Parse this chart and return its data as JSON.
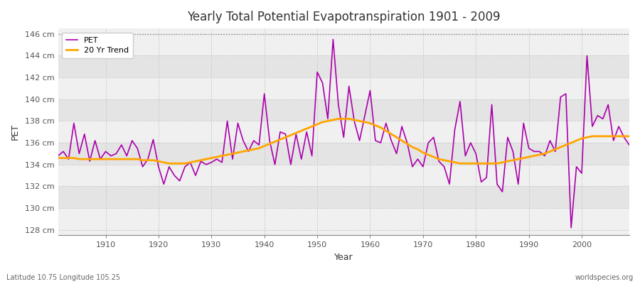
{
  "title": "Yearly Total Potential Evapotranspiration 1901 - 2009",
  "xlabel": "Year",
  "ylabel": "PET",
  "bottom_left_label": "Latitude 10.75 Longitude 105.25",
  "bottom_right_label": "worldspecies.org",
  "pet_color": "#AA00AA",
  "trend_color": "#FFA500",
  "fig_bg_color": "#FFFFFF",
  "plot_bg_color": "#F0F0F0",
  "band_color_light": "#F0F0F0",
  "band_color_dark": "#E4E4E4",
  "ylim": [
    127.5,
    146.5
  ],
  "yticks": [
    128,
    130,
    132,
    134,
    136,
    138,
    140,
    142,
    144,
    146
  ],
  "dotted_line_y": 146,
  "xlim": [
    1901,
    2009
  ],
  "xticks": [
    1910,
    1920,
    1930,
    1940,
    1950,
    1960,
    1970,
    1980,
    1990,
    2000
  ],
  "years": [
    1901,
    1902,
    1903,
    1904,
    1905,
    1906,
    1907,
    1908,
    1909,
    1910,
    1911,
    1912,
    1913,
    1914,
    1915,
    1916,
    1917,
    1918,
    1919,
    1920,
    1921,
    1922,
    1923,
    1924,
    1925,
    1926,
    1927,
    1928,
    1929,
    1930,
    1931,
    1932,
    1933,
    1934,
    1935,
    1936,
    1937,
    1938,
    1939,
    1940,
    1941,
    1942,
    1943,
    1944,
    1945,
    1946,
    1947,
    1948,
    1949,
    1950,
    1951,
    1952,
    1953,
    1954,
    1955,
    1956,
    1957,
    1958,
    1959,
    1960,
    1961,
    1962,
    1963,
    1964,
    1965,
    1966,
    1967,
    1968,
    1969,
    1970,
    1971,
    1972,
    1973,
    1974,
    1975,
    1976,
    1977,
    1978,
    1979,
    1980,
    1981,
    1982,
    1983,
    1984,
    1985,
    1986,
    1987,
    1988,
    1989,
    1990,
    1991,
    1992,
    1993,
    1994,
    1995,
    1996,
    1997,
    1998,
    1999,
    2000,
    2001,
    2002,
    2003,
    2004,
    2005,
    2006,
    2007,
    2008,
    2009
  ],
  "pet_values": [
    134.8,
    135.2,
    134.5,
    137.8,
    135.0,
    136.8,
    134.3,
    136.2,
    134.5,
    135.2,
    134.8,
    135.0,
    135.8,
    134.8,
    136.2,
    135.5,
    133.8,
    134.5,
    136.3,
    133.8,
    132.2,
    133.8,
    133.0,
    132.5,
    133.8,
    134.2,
    133.0,
    134.3,
    134.0,
    134.2,
    134.5,
    134.2,
    138.0,
    134.5,
    137.8,
    136.2,
    135.2,
    136.2,
    135.8,
    140.5,
    136.2,
    134.0,
    137.0,
    136.8,
    134.0,
    136.8,
    134.5,
    137.0,
    134.8,
    142.5,
    141.5,
    138.2,
    145.5,
    139.5,
    136.5,
    141.2,
    138.0,
    136.2,
    138.5,
    140.8,
    136.2,
    136.0,
    137.8,
    136.2,
    135.0,
    137.5,
    136.0,
    133.8,
    134.5,
    133.8,
    136.0,
    136.5,
    134.3,
    133.8,
    132.2,
    137.2,
    139.8,
    134.8,
    136.0,
    135.0,
    132.4,
    132.8,
    139.5,
    132.2,
    131.5,
    136.5,
    135.2,
    132.2,
    137.8,
    135.5,
    135.2,
    135.2,
    134.8,
    136.2,
    135.2,
    140.2,
    140.5,
    128.2,
    133.8,
    133.2,
    144.0,
    137.5,
    138.5,
    138.2,
    139.5,
    136.2,
    137.5,
    136.5,
    135.8
  ],
  "trend_values": [
    134.6,
    134.6,
    134.6,
    134.6,
    134.5,
    134.5,
    134.5,
    134.5,
    134.5,
    134.5,
    134.5,
    134.5,
    134.5,
    134.5,
    134.5,
    134.5,
    134.4,
    134.4,
    134.4,
    134.3,
    134.2,
    134.1,
    134.1,
    134.1,
    134.1,
    134.2,
    134.3,
    134.4,
    134.5,
    134.6,
    134.7,
    134.8,
    134.9,
    135.0,
    135.1,
    135.2,
    135.3,
    135.4,
    135.5,
    135.7,
    135.9,
    136.1,
    136.3,
    136.5,
    136.7,
    136.9,
    137.1,
    137.3,
    137.5,
    137.7,
    137.9,
    138.0,
    138.1,
    138.2,
    138.2,
    138.2,
    138.1,
    138.0,
    137.9,
    137.8,
    137.6,
    137.4,
    137.1,
    136.8,
    136.5,
    136.2,
    135.9,
    135.6,
    135.4,
    135.1,
    134.9,
    134.7,
    134.5,
    134.4,
    134.3,
    134.2,
    134.1,
    134.1,
    134.1,
    134.1,
    134.1,
    134.1,
    134.1,
    134.1,
    134.2,
    134.3,
    134.4,
    134.5,
    134.6,
    134.7,
    134.8,
    134.9,
    135.0,
    135.2,
    135.4,
    135.6,
    135.8,
    136.0,
    136.2,
    136.4,
    136.5,
    136.6,
    136.6,
    136.6,
    136.6,
    136.6,
    136.6,
    136.6,
    136.6
  ]
}
